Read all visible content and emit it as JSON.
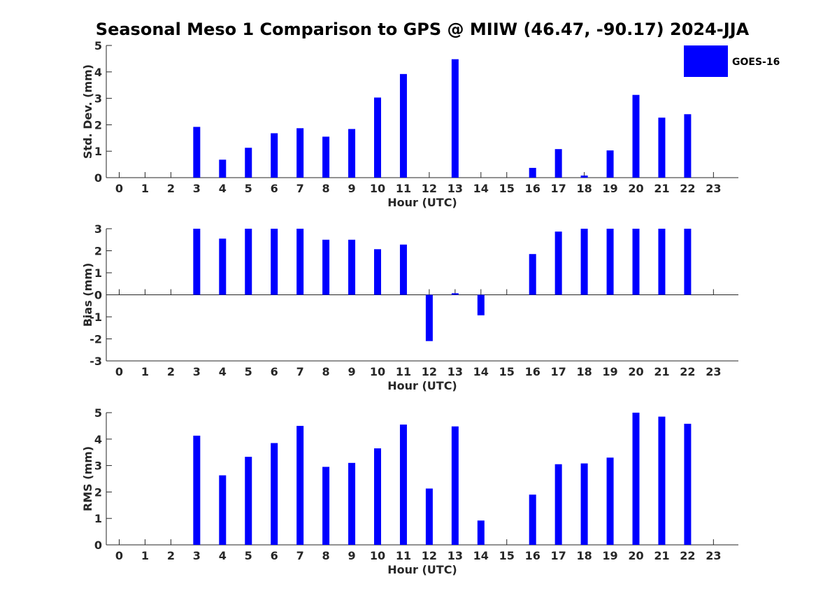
{
  "title": "Seasonal Meso 1 Comparison to GPS @ MIIW (46.47, -90.17) 2024-JJA",
  "legend": {
    "label": "GOES-16",
    "color": "#0000ff",
    "position": "top-right"
  },
  "colors": {
    "bar": "#0000ff",
    "axis": "#262626"
  },
  "chart_data": [
    {
      "type": "bar",
      "xlabel": "Hour (UTC)",
      "ylabel": "Std. Dev. (mm)",
      "ylim": [
        0,
        5
      ],
      "yticks": [
        "0",
        "1",
        "2",
        "3",
        "4",
        "5"
      ],
      "categories": [
        "0",
        "1",
        "2",
        "3",
        "4",
        "5",
        "6",
        "7",
        "8",
        "9",
        "10",
        "11",
        "12",
        "13",
        "14",
        "15",
        "16",
        "17",
        "18",
        "19",
        "20",
        "21",
        "22",
        "23"
      ],
      "series": [
        {
          "name": "GOES-16",
          "values": [
            0,
            0,
            0,
            1.92,
            0.68,
            1.13,
            1.68,
            1.87,
            1.55,
            1.84,
            3.03,
            3.92,
            0,
            4.48,
            0,
            0,
            0.37,
            1.08,
            0.08,
            1.03,
            3.13,
            2.27,
            2.4,
            0
          ]
        }
      ]
    },
    {
      "type": "bar",
      "xlabel": "Hour (UTC)",
      "ylabel": "Bias (mm)",
      "ylim": [
        -3,
        3
      ],
      "yticks": [
        "-3",
        "-2",
        "-1",
        "0",
        "1",
        "2",
        "3"
      ],
      "categories": [
        "0",
        "1",
        "2",
        "3",
        "4",
        "5",
        "6",
        "7",
        "8",
        "9",
        "10",
        "11",
        "12",
        "13",
        "14",
        "15",
        "16",
        "17",
        "18",
        "19",
        "20",
        "21",
        "22",
        "23"
      ],
      "series": [
        {
          "name": "GOES-16",
          "values": [
            0,
            0,
            0,
            3.0,
            2.55,
            3.0,
            3.0,
            3.0,
            2.5,
            2.5,
            2.07,
            2.28,
            -2.1,
            0.07,
            -0.93,
            0,
            1.85,
            2.87,
            3.0,
            3.0,
            3.0,
            3.0,
            3.0,
            0
          ]
        }
      ]
    },
    {
      "type": "bar",
      "xlabel": "Hour (UTC)",
      "ylabel": "RMS (mm)",
      "ylim": [
        0,
        5
      ],
      "yticks": [
        "0",
        "1",
        "2",
        "3",
        "4",
        "5"
      ],
      "categories": [
        "0",
        "1",
        "2",
        "3",
        "4",
        "5",
        "6",
        "7",
        "8",
        "9",
        "10",
        "11",
        "12",
        "13",
        "14",
        "15",
        "16",
        "17",
        "18",
        "19",
        "20",
        "21",
        "22",
        "23"
      ],
      "series": [
        {
          "name": "GOES-16",
          "values": [
            0,
            0,
            0,
            4.13,
            2.63,
            3.33,
            3.85,
            4.5,
            2.95,
            3.1,
            3.65,
            4.55,
            2.13,
            4.48,
            0.92,
            0,
            1.9,
            3.05,
            3.08,
            3.3,
            5.0,
            4.85,
            4.58,
            0
          ]
        }
      ]
    }
  ]
}
